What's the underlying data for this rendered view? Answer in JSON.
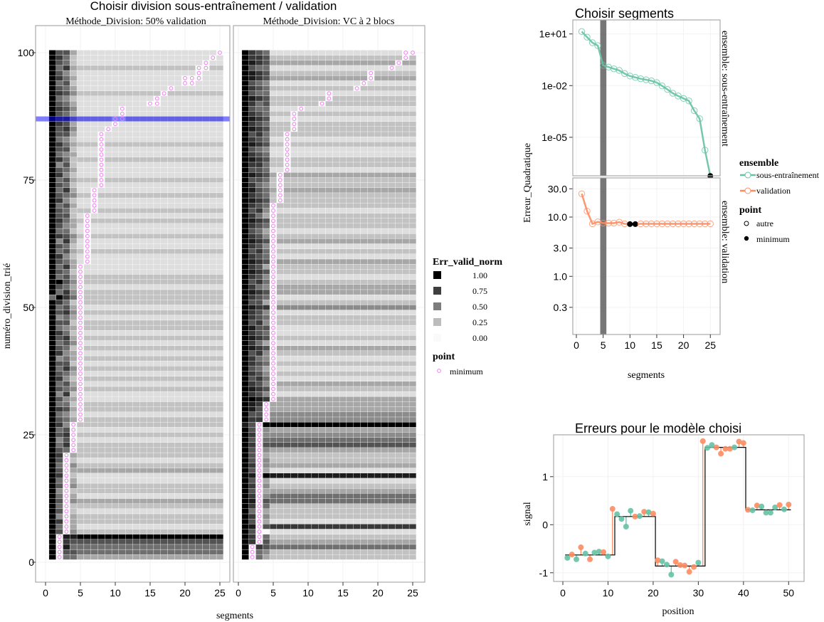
{
  "colors": {
    "train": "#66c2a5",
    "valid": "#fc8d62",
    "minimum_marker": "#ee82ee",
    "highlight": "#0000ff",
    "selected_band": "#555555"
  },
  "chart_data": [
    {
      "type": "heatmap",
      "title": "Choisir division sous-entraînement / validation",
      "xlabel": "segments",
      "ylabel": "numéro_division_trié",
      "x_ticks": [
        "0",
        "5",
        "10",
        "15",
        "20",
        "25"
      ],
      "y_ticks": [
        "0",
        "25",
        "50",
        "75",
        "100"
      ],
      "xlim": [
        0,
        25
      ],
      "ylim": [
        0,
        100
      ],
      "highlighted_row": 87,
      "legend": {
        "fill_title": "Err_valid_norm",
        "fill_labels": [
          "1.00",
          "0.75",
          "0.50",
          "0.25",
          "0.00"
        ],
        "fill_values": [
          1,
          0.75,
          0.5,
          0.25,
          0
        ],
        "point_title": "point",
        "point_label": "minimum"
      },
      "value_encoding": "each row string: digits for segments 1-4, then one digit for segments 5-25; digit/9 = Err_valid_norm; minimum cells are 0",
      "panels": [
        {
          "strip": "Méthode_Division: 50% validation",
          "rows": [
            "96553",
            "97665",
            "97855",
            "98766",
            "97889",
            "96542",
            "95431",
            "97632",
            "94532",
            "96421",
            "95622",
            "96743",
            "95331",
            "94522",
            "96642",
            "95731",
            "97521",
            "96433",
            "95442",
            "96621",
            "97532",
            "96542",
            "95752",
            "94631",
            "96742",
            "95631",
            "97422",
            "96532",
            "95421",
            "97632",
            "95522",
            "96431",
            "94721",
            "96542",
            "95631",
            "97422",
            "96531",
            "95742",
            "96621",
            "94532",
            "97431",
            "96522",
            "95641",
            "96732",
            "97521",
            "95432",
            "96622",
            "94531",
            "96742",
            "95631",
            "97522",
            "59752",
            "95742",
            "96531",
            "99642",
            "95632",
            "96521",
            "95731",
            "96531",
            "97421",
            "95632",
            "96521",
            "94731",
            "97642",
            "95521",
            "96431",
            "97532",
            "96621",
            "96522",
            "95631",
            "97421",
            "96542",
            "95731",
            "96521",
            "95632",
            "97421",
            "96531",
            "94621",
            "97522",
            "95431",
            "96621",
            "97532",
            "95421",
            "96631",
            "96741",
            "97631",
            "97742",
            "96531",
            "97641",
            "96531",
            "95421",
            "97642",
            "96531",
            "95621",
            "97531",
            "96421",
            "95732",
            "96521",
            "97521",
            "96631"
          ],
          "minima": [
            {
              "rows": [
                1,
                5
              ],
              "segments": [
                2
              ]
            },
            {
              "rows": [
                6,
                21
              ],
              "segments": [
                3
              ]
            },
            {
              "rows": [
                22,
                27
              ],
              "segments": [
                4
              ]
            },
            {
              "rows": [
                28,
                58
              ],
              "segments": [
                5
              ]
            },
            {
              "rows": [
                59,
                68
              ],
              "segments": [
                6
              ]
            },
            {
              "rows": [
                69,
                73
              ],
              "segments": [
                7
              ]
            },
            {
              "rows": [
                74,
                84
              ],
              "segments": [
                8
              ]
            },
            {
              "rows": [
                85,
                85
              ],
              "segments": [
                9
              ]
            },
            {
              "rows": [
                86,
                86
              ],
              "segments": [
                10
              ]
            },
            {
              "rows": [
                87,
                87
              ],
              "segments": [
                10,
                11
              ]
            },
            {
              "rows": [
                88,
                89
              ],
              "segments": [
                11
              ]
            },
            {
              "rows": [
                90,
                90
              ],
              "segments": [
                15,
                16
              ]
            },
            {
              "rows": [
                91,
                91
              ],
              "segments": [
                16
              ]
            },
            {
              "rows": [
                92,
                92
              ],
              "segments": [
                17
              ]
            },
            {
              "rows": [
                93,
                93
              ],
              "segments": [
                18
              ]
            },
            {
              "rows": [
                94,
                94
              ],
              "segments": [
                20,
                21
              ]
            },
            {
              "rows": [
                95,
                95
              ],
              "segments": [
                20,
                21,
                22
              ]
            },
            {
              "rows": [
                96,
                96
              ],
              "segments": [
                22
              ]
            },
            {
              "rows": [
                97,
                97
              ],
              "segments": [
                22,
                23
              ]
            },
            {
              "rows": [
                98,
                98
              ],
              "segments": [
                23
              ]
            },
            {
              "rows": [
                99,
                99
              ],
              "segments": [
                24
              ]
            },
            {
              "rows": [
                100,
                100
              ],
              "segments": [
                25
              ]
            }
          ]
        },
        {
          "strip": "Méthode_Division: VC à 2 blocs",
          "rows": [
            "97532",
            "96542",
            "99765",
            "97563",
            "97452",
            "96701",
            "98567",
            "96231",
            "97442",
            "95632",
            "97652",
            "98665",
            "97545",
            "96233",
            "97542",
            "96631",
            "98798",
            "96831",
            "97643",
            "96542",
            "96532",
            "96743",
            "97666",
            "96755",
            "97644",
            "96843",
            "86599",
            "97764",
            "96654",
            "98653",
            "98773",
            "99873",
            "97641",
            "98762",
            "97643",
            "96751",
            "97642",
            "96531",
            "97652",
            "97541",
            "96742",
            "98763",
            "97531",
            "98762",
            "97651",
            "98661",
            "96742",
            "97652",
            "97641",
            "98774",
            "96632",
            "97651",
            "98763",
            "97543",
            "96752",
            "97641",
            "98762",
            "97632",
            "98763",
            "97651",
            "96752",
            "97641",
            "98763",
            "97642",
            "96531",
            "97652",
            "98762",
            "97532",
            "96741",
            "97652",
            "98762",
            "97652",
            "98653",
            "97542",
            "96652",
            "98763",
            "96651",
            "97752",
            "98762",
            "97651",
            "96541",
            "98762",
            "97651",
            "96752",
            "98762",
            "97652",
            "98761",
            "97652",
            "96551",
            "97562",
            "98762",
            "96551",
            "97652",
            "96541",
            "98763",
            "98762",
            "96551",
            "98763",
            "97762",
            "97651"
          ],
          "minima": [
            {
              "rows": [
                1,
                3
              ],
              "segments": [
                2
              ]
            },
            {
              "rows": [
                4,
                27
              ],
              "segments": [
                3
              ]
            },
            {
              "rows": [
                28,
                31
              ],
              "segments": [
                4
              ]
            },
            {
              "rows": [
                32,
                70
              ],
              "segments": [
                5
              ]
            },
            {
              "rows": [
                71,
                76
              ],
              "segments": [
                6
              ]
            },
            {
              "rows": [
                77,
                84
              ],
              "segments": [
                7
              ]
            },
            {
              "rows": [
                85,
                88
              ],
              "segments": [
                8
              ]
            },
            {
              "rows": [
                89,
                89
              ],
              "segments": [
                9
              ]
            },
            {
              "rows": [
                90,
                90
              ],
              "segments": [
                12
              ]
            },
            {
              "rows": [
                91,
                92
              ],
              "segments": [
                13
              ]
            },
            {
              "rows": [
                93,
                93
              ],
              "segments": [
                17
              ]
            },
            {
              "rows": [
                94,
                94
              ],
              "segments": [
                18
              ]
            },
            {
              "rows": [
                95,
                96
              ],
              "segments": [
                19
              ]
            },
            {
              "rows": [
                97,
                97
              ],
              "segments": [
                22
              ]
            },
            {
              "rows": [
                98,
                98
              ],
              "segments": [
                23
              ]
            },
            {
              "rows": [
                99,
                99
              ],
              "segments": [
                24
              ]
            },
            {
              "rows": [
                100,
                100
              ],
              "segments": [
                24,
                25
              ]
            }
          ]
        }
      ]
    },
    {
      "type": "line",
      "title": "Choisir segments",
      "xlabel": "segments",
      "ylabel": "Erreur_Quadratique",
      "x_ticks": [
        "0",
        "5",
        "10",
        "15",
        "20",
        "25"
      ],
      "xlim": [
        -0.7,
        26.2
      ],
      "selected_segments": 5,
      "y_scale": "log",
      "legend": {
        "color_title": "ensemble",
        "color_labels": [
          "sous-entraînement",
          "validation"
        ],
        "point_title": "point",
        "point_labels": [
          "autre",
          "minimum"
        ]
      },
      "panels": [
        {
          "strip": "ensemble: sous-entraînement",
          "series": "sous-entraînement",
          "y_ticks": [
            "1e+01",
            "1e-02",
            "1e-05"
          ],
          "y_tick_values": [
            10,
            0.01,
            1e-05
          ],
          "ylim": [
            5.7e-08,
            65
          ],
          "x": [
            1,
            2,
            3,
            4,
            5,
            6,
            7,
            8,
            9,
            10,
            11,
            12,
            13,
            14,
            15,
            16,
            17,
            18,
            19,
            20,
            21,
            22,
            23,
            24,
            25
          ],
          "y": [
            13.8,
            6.5,
            3.1,
            2.1,
            0.15,
            0.12,
            0.095,
            0.076,
            0.05,
            0.036,
            0.03,
            0.025,
            0.022,
            0.019,
            0.015,
            0.0096,
            0.006,
            0.0036,
            0.0025,
            0.0018,
            0.0013,
            0.00035,
            0.00012,
            1.8e-06,
            5.7e-08
          ],
          "minimum_x": [
            25
          ]
        },
        {
          "strip": "ensemble: validation",
          "series": "validation",
          "y_ticks": [
            "30.0",
            "10.0",
            "3.0",
            "1.0",
            "0.3"
          ],
          "y_tick_values": [
            30,
            10,
            3,
            1,
            0.3
          ],
          "ylim": [
            0.105,
            46
          ],
          "x": [
            1,
            2,
            3,
            4,
            5,
            6,
            7,
            8,
            9,
            10,
            11,
            12,
            13,
            14,
            15,
            16,
            17,
            18,
            19,
            20,
            21,
            22,
            23,
            24,
            25
          ],
          "y": [
            24.7,
            12.6,
            7.7,
            8.3,
            7.9,
            7.9,
            7.9,
            8.2,
            7.7,
            7.6,
            7.6,
            7.7,
            7.7,
            7.7,
            7.7,
            7.7,
            7.7,
            7.7,
            7.7,
            7.7,
            7.7,
            7.7,
            7.7,
            7.7,
            7.7
          ],
          "minimum_x": [
            10,
            11
          ]
        }
      ]
    },
    {
      "type": "scatter",
      "title": "Erreurs pour le modèle choisi",
      "xlabel": "position",
      "ylabel": "signal",
      "x_ticks": [
        "0",
        "10",
        "20",
        "30",
        "40",
        "50"
      ],
      "y_ticks": [
        "1",
        "0",
        "-1"
      ],
      "xlim": [
        -2,
        53
      ],
      "ylim": [
        -1.17,
        1.86
      ],
      "points": {
        "position": [
          1,
          2,
          3,
          4,
          5,
          6,
          7,
          8,
          9,
          10,
          11,
          12,
          13,
          14,
          15,
          16,
          17,
          18,
          19,
          20,
          21,
          22,
          23,
          24,
          25,
          26,
          27,
          28,
          29,
          30,
          31,
          32,
          33,
          34,
          35,
          36,
          37,
          38,
          39,
          40,
          41,
          42,
          43,
          44,
          45,
          46,
          47,
          48,
          49,
          50
        ],
        "signal": [
          -0.69,
          -0.62,
          -0.72,
          -0.47,
          -0.6,
          -0.72,
          -0.58,
          -0.56,
          -0.57,
          -0.66,
          0.33,
          0.22,
          0.12,
          -0.04,
          0.29,
          0.17,
          0.18,
          0.27,
          0.26,
          0.23,
          -0.74,
          -0.76,
          -0.83,
          -1.04,
          -0.77,
          -0.84,
          -0.85,
          -0.98,
          -0.88,
          -0.79,
          1.74,
          1.6,
          1.66,
          1.61,
          1.48,
          1.58,
          1.58,
          1.61,
          1.73,
          1.7,
          0.31,
          0.3,
          0.4,
          0.38,
          0.25,
          0.25,
          0.36,
          0.41,
          0.32,
          0.42
        ],
        "set": [
          "t",
          "v",
          "t",
          "v",
          "t",
          "v",
          "t",
          "t",
          "v",
          "t",
          "v",
          "t",
          "t",
          "t",
          "t",
          "v",
          "t",
          "v",
          "t",
          "v",
          "v",
          "t",
          "t",
          "t",
          "v",
          "v",
          "v",
          "v",
          "v",
          "t",
          "v",
          "t",
          "t",
          "v",
          "v",
          "v",
          "v",
          "t",
          "v",
          "v",
          "v",
          "t",
          "v",
          "t",
          "t",
          "t",
          "t",
          "v",
          "t",
          "v"
        ]
      },
      "segments": [
        {
          "start": 0.5,
          "end": 11.5,
          "mean": -0.63
        },
        {
          "start": 11.5,
          "end": 20.5,
          "mean": 0.17
        },
        {
          "start": 20.5,
          "end": 31.5,
          "mean": -0.86
        },
        {
          "start": 31.5,
          "end": 40.5,
          "mean": 1.61
        },
        {
          "start": 40.5,
          "end": 50.5,
          "mean": 0.31
        }
      ]
    }
  ]
}
